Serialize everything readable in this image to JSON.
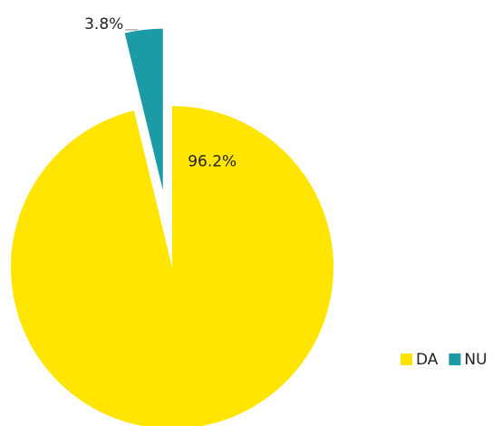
{
  "chart_data": {
    "type": "pie",
    "categories": [
      "DA",
      "NU"
    ],
    "values": [
      96.2,
      3.8
    ],
    "value_labels": [
      "96.2%",
      "3.8%"
    ],
    "colors": [
      "#ffe500",
      "#1a9ba6"
    ],
    "explode": [
      false,
      true
    ],
    "legend": "bottom-right"
  }
}
